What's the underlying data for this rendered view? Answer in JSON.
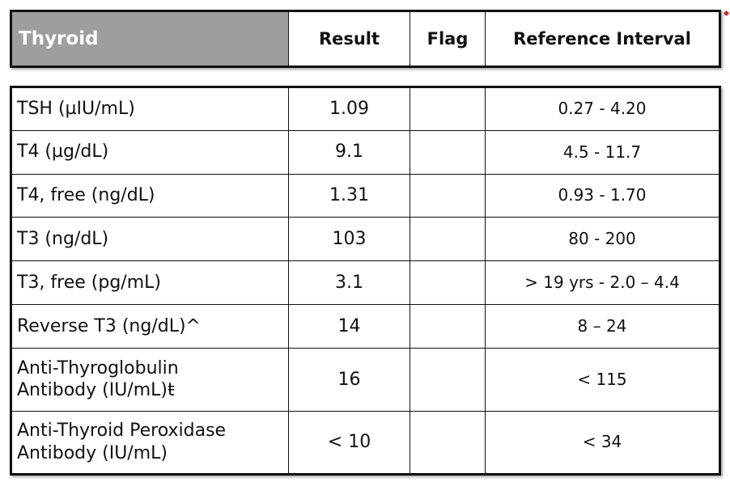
{
  "header": {
    "section_title": "Thyroid",
    "col_result": "Result",
    "col_flag": "Flag",
    "col_reference": "Reference Interval"
  },
  "rows": [
    {
      "test_lines": [
        "TSH (µIU/mL)"
      ],
      "result": "1.09",
      "flag": "",
      "reference": "0.27 - 4.20"
    },
    {
      "test_lines": [
        "T4 (µg/dL)"
      ],
      "result": "9.1",
      "flag": "",
      "reference": "4.5 - 11.7"
    },
    {
      "test_lines": [
        "T4, free (ng/dL)"
      ],
      "result": "1.31",
      "flag": "",
      "reference": "0.93 - 1.70"
    },
    {
      "test_lines": [
        "T3 (ng/dL)"
      ],
      "result": "103",
      "flag": "",
      "reference": "80 - 200"
    },
    {
      "test_lines": [
        "T3, free (pg/mL)"
      ],
      "result": "3.1",
      "flag": "",
      "reference": "> 19 yrs - 2.0 – 4.4"
    },
    {
      "test_lines": [
        "Reverse T3 (ng/dL)^"
      ],
      "result": "14",
      "flag": "",
      "reference": "8 – 24"
    },
    {
      "test_lines": [
        "Anti-Thyroglobulin",
        "Antibody (IU/mL)ŧ"
      ],
      "result": "16",
      "flag": "",
      "reference": "< 115"
    },
    {
      "test_lines": [
        "Anti-Thyroid Peroxidase",
        "Antibody (IU/mL)"
      ],
      "result": "< 10",
      "flag": "",
      "reference": "< 34"
    }
  ],
  "colors": {
    "header_fill": "#9e9e9e",
    "header_text": "#ffffff",
    "border": "#111111",
    "corner_mark": "#c62828"
  }
}
